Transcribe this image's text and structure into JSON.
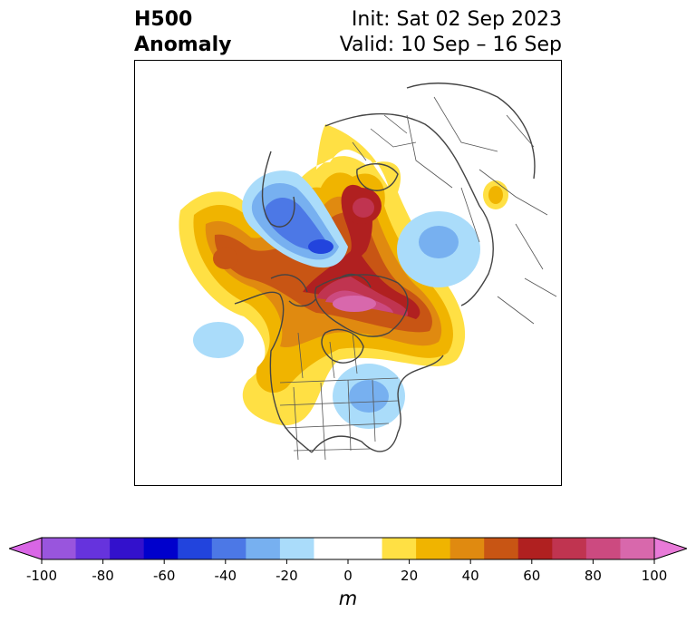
{
  "header": {
    "title_line1": "H500",
    "title_line2": "Anomaly",
    "init_text": "Init: Sat 02 Sep 2023",
    "valid_text": "Valid: 10 Sep – 16 Sep"
  },
  "colorbar": {
    "colors": [
      "#d966e6",
      "#9955dd",
      "#6633dd",
      "#3311cc",
      "#0000cc",
      "#2244dd",
      "#4c78e6",
      "#77b0f0",
      "#aadcfa",
      "#ffffff",
      "#ffffff",
      "#ffe044",
      "#f0b400",
      "#e08a10",
      "#c85514",
      "#b02020",
      "#c03450",
      "#cc4a80",
      "#d868ac",
      "#e87ad8"
    ],
    "ticks": [
      "-100",
      "-80",
      "-60",
      "-40",
      "-20",
      "0",
      "20",
      "40",
      "60",
      "80",
      "100"
    ],
    "unit": "m"
  }
}
